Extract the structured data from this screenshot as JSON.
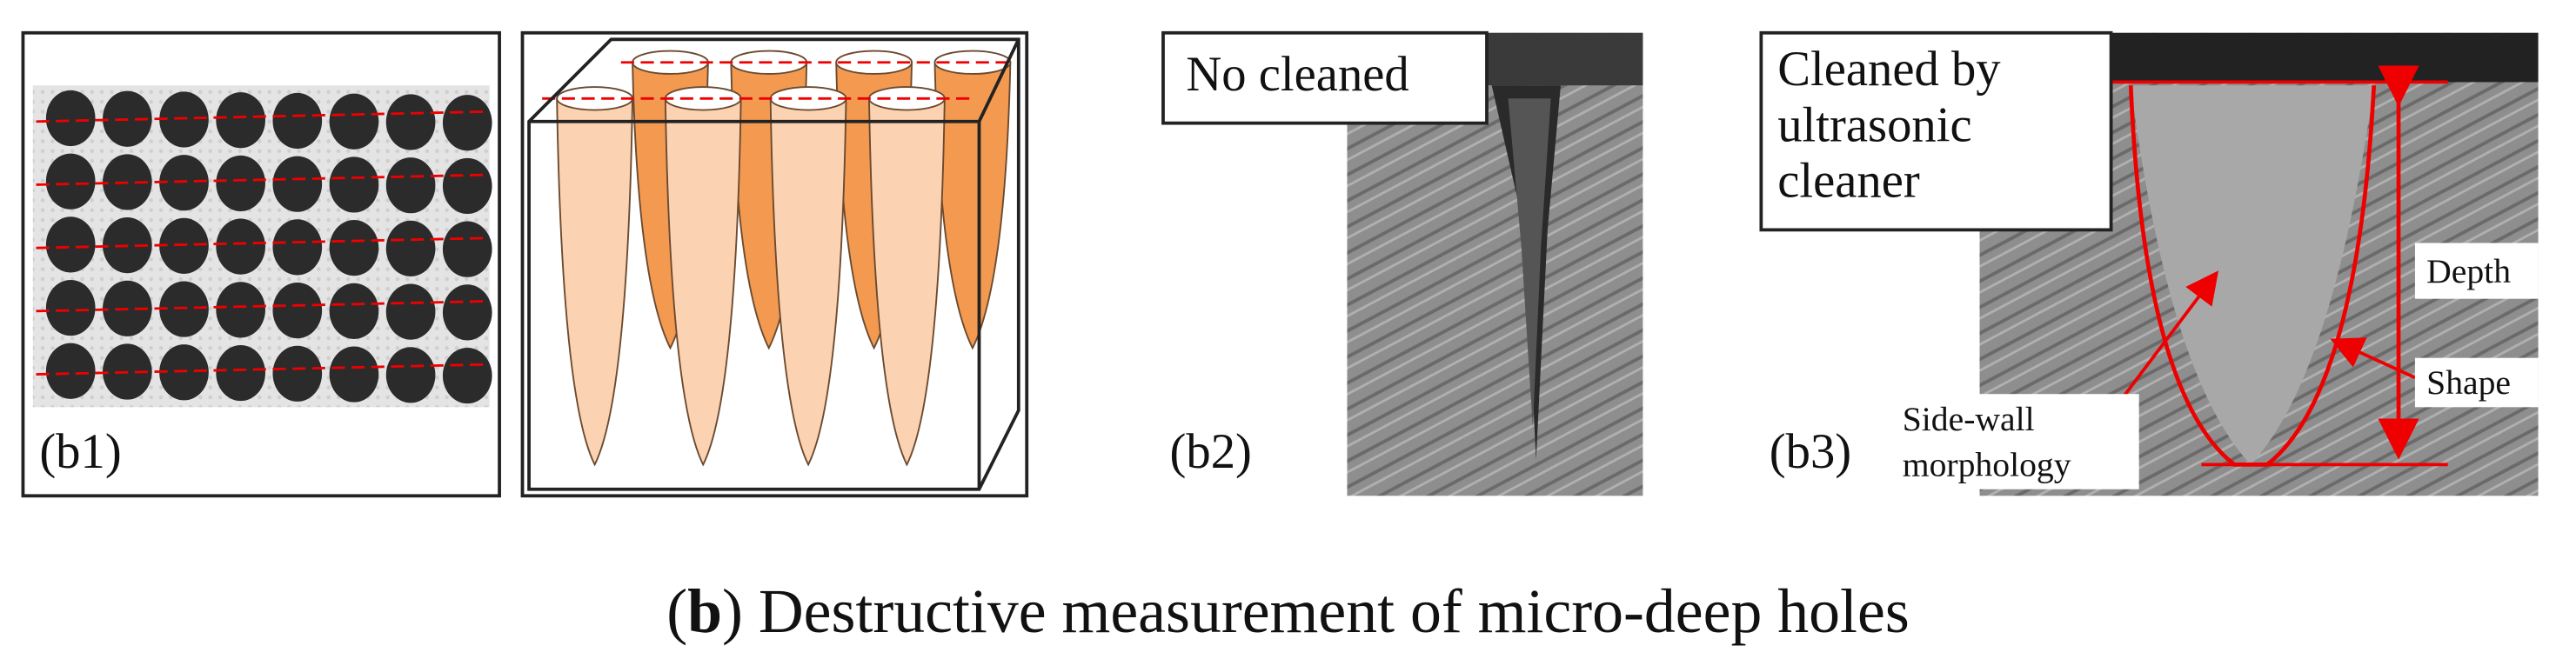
{
  "panels": {
    "b1": "(b1)",
    "b2": "(b2)",
    "b3": "(b3)"
  },
  "notes": {
    "no_cleaned": "No cleaned",
    "cleaned": [
      "Cleaned by",
      "ultrasonic",
      "cleaner"
    ]
  },
  "annotations": {
    "depth": "Depth",
    "shape": "Shape",
    "side_wall": [
      "Side-wall",
      "morphology"
    ]
  },
  "caption": {
    "open": "(",
    "letter": "b",
    "rest": ") Destructive measurement of micro-deep holes"
  }
}
